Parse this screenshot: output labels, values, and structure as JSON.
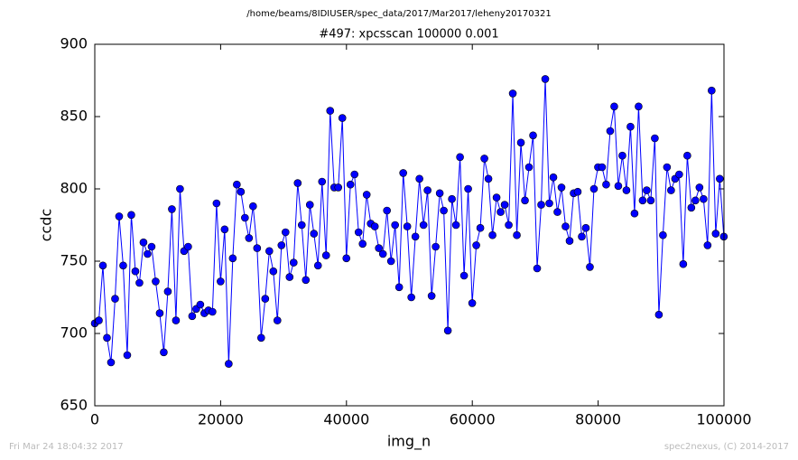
{
  "chart_data": {
    "type": "line",
    "header": "/home/beams/8IDIUSER/spec_data/2017/Mar2017/leheny20170321",
    "title": "#497: xpcsscan 100000 0.001",
    "xlabel": "img_n",
    "ylabel": "ccdc",
    "footer_left": "Fri Mar 24 18:04:32 2017",
    "footer_right": "spec2nexus, (C) 2014-2017",
    "color": "#0000ff",
    "marker": true,
    "grid": false,
    "xlim": [
      0,
      100000
    ],
    "xticks": [
      0,
      20000,
      40000,
      60000,
      80000,
      100000
    ],
    "ylim": [
      650,
      900
    ],
    "yticks": [
      650,
      700,
      750,
      800,
      850,
      900
    ],
    "x": [
      0,
      645,
      1290,
      1935,
      2580,
      3225,
      3870,
      4515,
      5160,
      5805,
      6450,
      7095,
      7740,
      8385,
      9030,
      9675,
      10320,
      10965,
      11610,
      12255,
      12900,
      13545,
      14190,
      14835,
      15480,
      16125,
      16770,
      17415,
      18060,
      18705,
      19350,
      19995,
      20640,
      21285,
      21930,
      22575,
      23220,
      23865,
      24510,
      25155,
      25800,
      26445,
      27090,
      27735,
      28380,
      29025,
      29670,
      30315,
      30960,
      31605,
      32250,
      32895,
      33540,
      34185,
      34830,
      35475,
      36120,
      36765,
      37410,
      38055,
      38700,
      39345,
      39990,
      40635,
      41280,
      41925,
      42570,
      43215,
      43860,
      44505,
      45150,
      45795,
      46440,
      47085,
      47730,
      48375,
      49020,
      49665,
      50310,
      50955,
      51600,
      52245,
      52890,
      53535,
      54180,
      54825,
      55470,
      56115,
      56760,
      57405,
      58050,
      58695,
      59340,
      59985,
      60630,
      61275,
      61920,
      62565,
      63210,
      63855,
      64500,
      65145,
      65790,
      66435,
      67080,
      67725,
      68370,
      69015,
      69660,
      70305,
      70950,
      71595,
      72240,
      72885,
      73530,
      74175,
      74820,
      75465,
      76110,
      76755,
      77400,
      78045,
      78690,
      79335,
      79980,
      80625,
      81270,
      81915,
      82560,
      83205,
      83850,
      84495,
      85140,
      85785,
      86430,
      87075,
      87720,
      88365,
      89010,
      89655,
      90300,
      90945,
      91590,
      92235,
      92880,
      93525,
      94170,
      94815,
      95460,
      96105,
      96750,
      97395,
      98040,
      98685,
      99330,
      99975
    ],
    "values": [
      707,
      709,
      747,
      697,
      680,
      724,
      781,
      747,
      685,
      782,
      743,
      735,
      763,
      755,
      760,
      736,
      714,
      687,
      729,
      786,
      709,
      800,
      757,
      760,
      712,
      717,
      720,
      714,
      716,
      715,
      790,
      736,
      772,
      679,
      752,
      803,
      798,
      780,
      766,
      788,
      759,
      697,
      724,
      757,
      743,
      709,
      761,
      770,
      739,
      749,
      804,
      775,
      737,
      789,
      769,
      747,
      805,
      754,
      854,
      801,
      801,
      849,
      752,
      803,
      810,
      770,
      762,
      796,
      776,
      774,
      759,
      755,
      785,
      750,
      775,
      732,
      811,
      774,
      725,
      767,
      807,
      775,
      799,
      726,
      760,
      797,
      785,
      702,
      793,
      775,
      822,
      740,
      800,
      721,
      761,
      773,
      821,
      807,
      768,
      794,
      784,
      789,
      775,
      866,
      768,
      832,
      792,
      815,
      837,
      745,
      789,
      876,
      790,
      808,
      784,
      801,
      774,
      764,
      797,
      798,
      767,
      773,
      746,
      800,
      815,
      815,
      803,
      840,
      857,
      802,
      823,
      799,
      843,
      783,
      857,
      792,
      799,
      792,
      835,
      713,
      768,
      815,
      799,
      807,
      810,
      748,
      823,
      787,
      792,
      801,
      793,
      761,
      868,
      769,
      807,
      767
    ]
  }
}
